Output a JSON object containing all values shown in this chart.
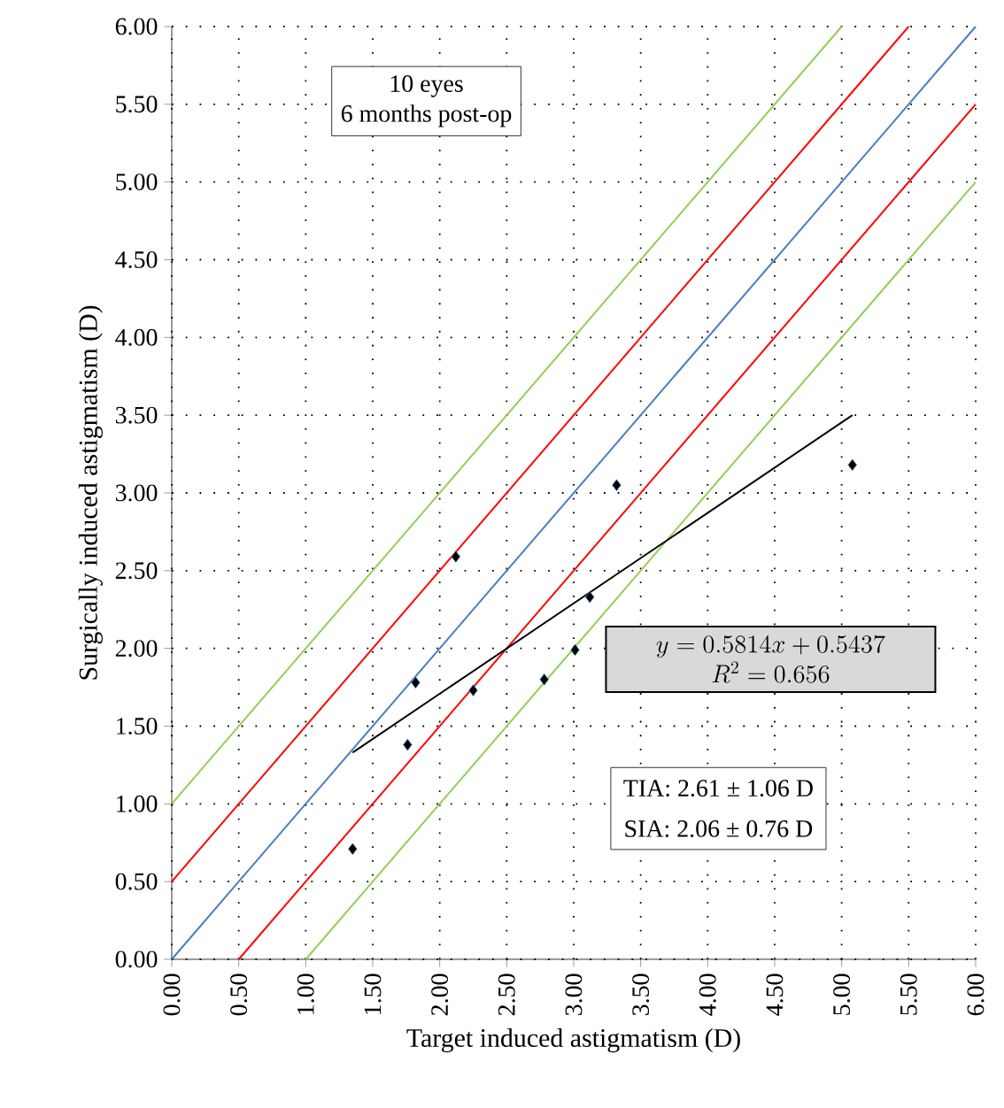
{
  "chart_data": {
    "type": "scatter",
    "xlabel": "Target induced astigmatism (D)",
    "ylabel": "Surgically induced astigmatism (D)",
    "xlim": [
      0,
      6
    ],
    "ylim": [
      0,
      6
    ],
    "xticks": [
      {
        "value": 0,
        "label": "0.00"
      },
      {
        "value": 0.5,
        "label": "0.50"
      },
      {
        "value": 1,
        "label": "1.00"
      },
      {
        "value": 1.5,
        "label": "1.50"
      },
      {
        "value": 2,
        "label": "2.00"
      },
      {
        "value": 2.5,
        "label": "2.50"
      },
      {
        "value": 3,
        "label": "3.00"
      },
      {
        "value": 3.5,
        "label": "3.50"
      },
      {
        "value": 4,
        "label": "4.00"
      },
      {
        "value": 4.5,
        "label": "4.50"
      },
      {
        "value": 5,
        "label": "5.00"
      },
      {
        "value": 5.5,
        "label": "5.50"
      },
      {
        "value": 6,
        "label": "6.00"
      }
    ],
    "yticks": [
      {
        "value": 0,
        "label": "0.00"
      },
      {
        "value": 0.5,
        "label": "0.50"
      },
      {
        "value": 1,
        "label": "1.00"
      },
      {
        "value": 1.5,
        "label": "1.50"
      },
      {
        "value": 2,
        "label": "2.00"
      },
      {
        "value": 2.5,
        "label": "2.50"
      },
      {
        "value": 3,
        "label": "3.00"
      },
      {
        "value": 3.5,
        "label": "3.50"
      },
      {
        "value": 4,
        "label": "4.00"
      },
      {
        "value": 4.5,
        "label": "4.50"
      },
      {
        "value": 5,
        "label": "5.00"
      },
      {
        "value": 5.5,
        "label": "5.50"
      },
      {
        "value": 6,
        "label": "6.00"
      }
    ],
    "grid": true,
    "marker": "diamond",
    "series": [
      {
        "type": "line",
        "marker": "none",
        "color": "#92d050",
        "x": [
          0,
          5
        ],
        "values": [
          1,
          6
        ]
      },
      {
        "type": "line",
        "marker": "none",
        "color": "#ff0000",
        "x": [
          0,
          5.5
        ],
        "values": [
          0.5,
          6
        ]
      },
      {
        "type": "line",
        "marker": "none",
        "color": "#4a7ebb",
        "x": [
          0,
          6
        ],
        "values": [
          0,
          6
        ]
      },
      {
        "type": "line",
        "marker": "none",
        "color": "#ff0000",
        "x": [
          0.5,
          6
        ],
        "values": [
          0,
          5.5
        ]
      },
      {
        "type": "line",
        "marker": "none",
        "color": "#92d050",
        "x": [
          1,
          6
        ],
        "values": [
          0,
          5
        ]
      },
      {
        "type": "line",
        "marker": "none",
        "color": "#000000",
        "x": [
          1.35,
          5.08
        ],
        "values": [
          1.33,
          3.5
        ]
      },
      {
        "color": "#000000",
        "x": [
          1.35,
          1.76,
          1.82,
          2.12,
          2.25,
          2.78,
          3.01,
          3.12,
          3.32,
          5.08
        ],
        "values": [
          0.71,
          1.38,
          1.78,
          2.59,
          1.73,
          1.8,
          1.99,
          2.33,
          3.05,
          3.18
        ]
      }
    ],
    "annotations": [
      "10 eyes",
      "6 months post-op",
      "y = 0.5814x + 0.5437",
      "R^{2} = 0.656",
      "TIA: 2.61 ± 1.06 D",
      "SIA: 2.06 ± 0.76 D"
    ]
  }
}
